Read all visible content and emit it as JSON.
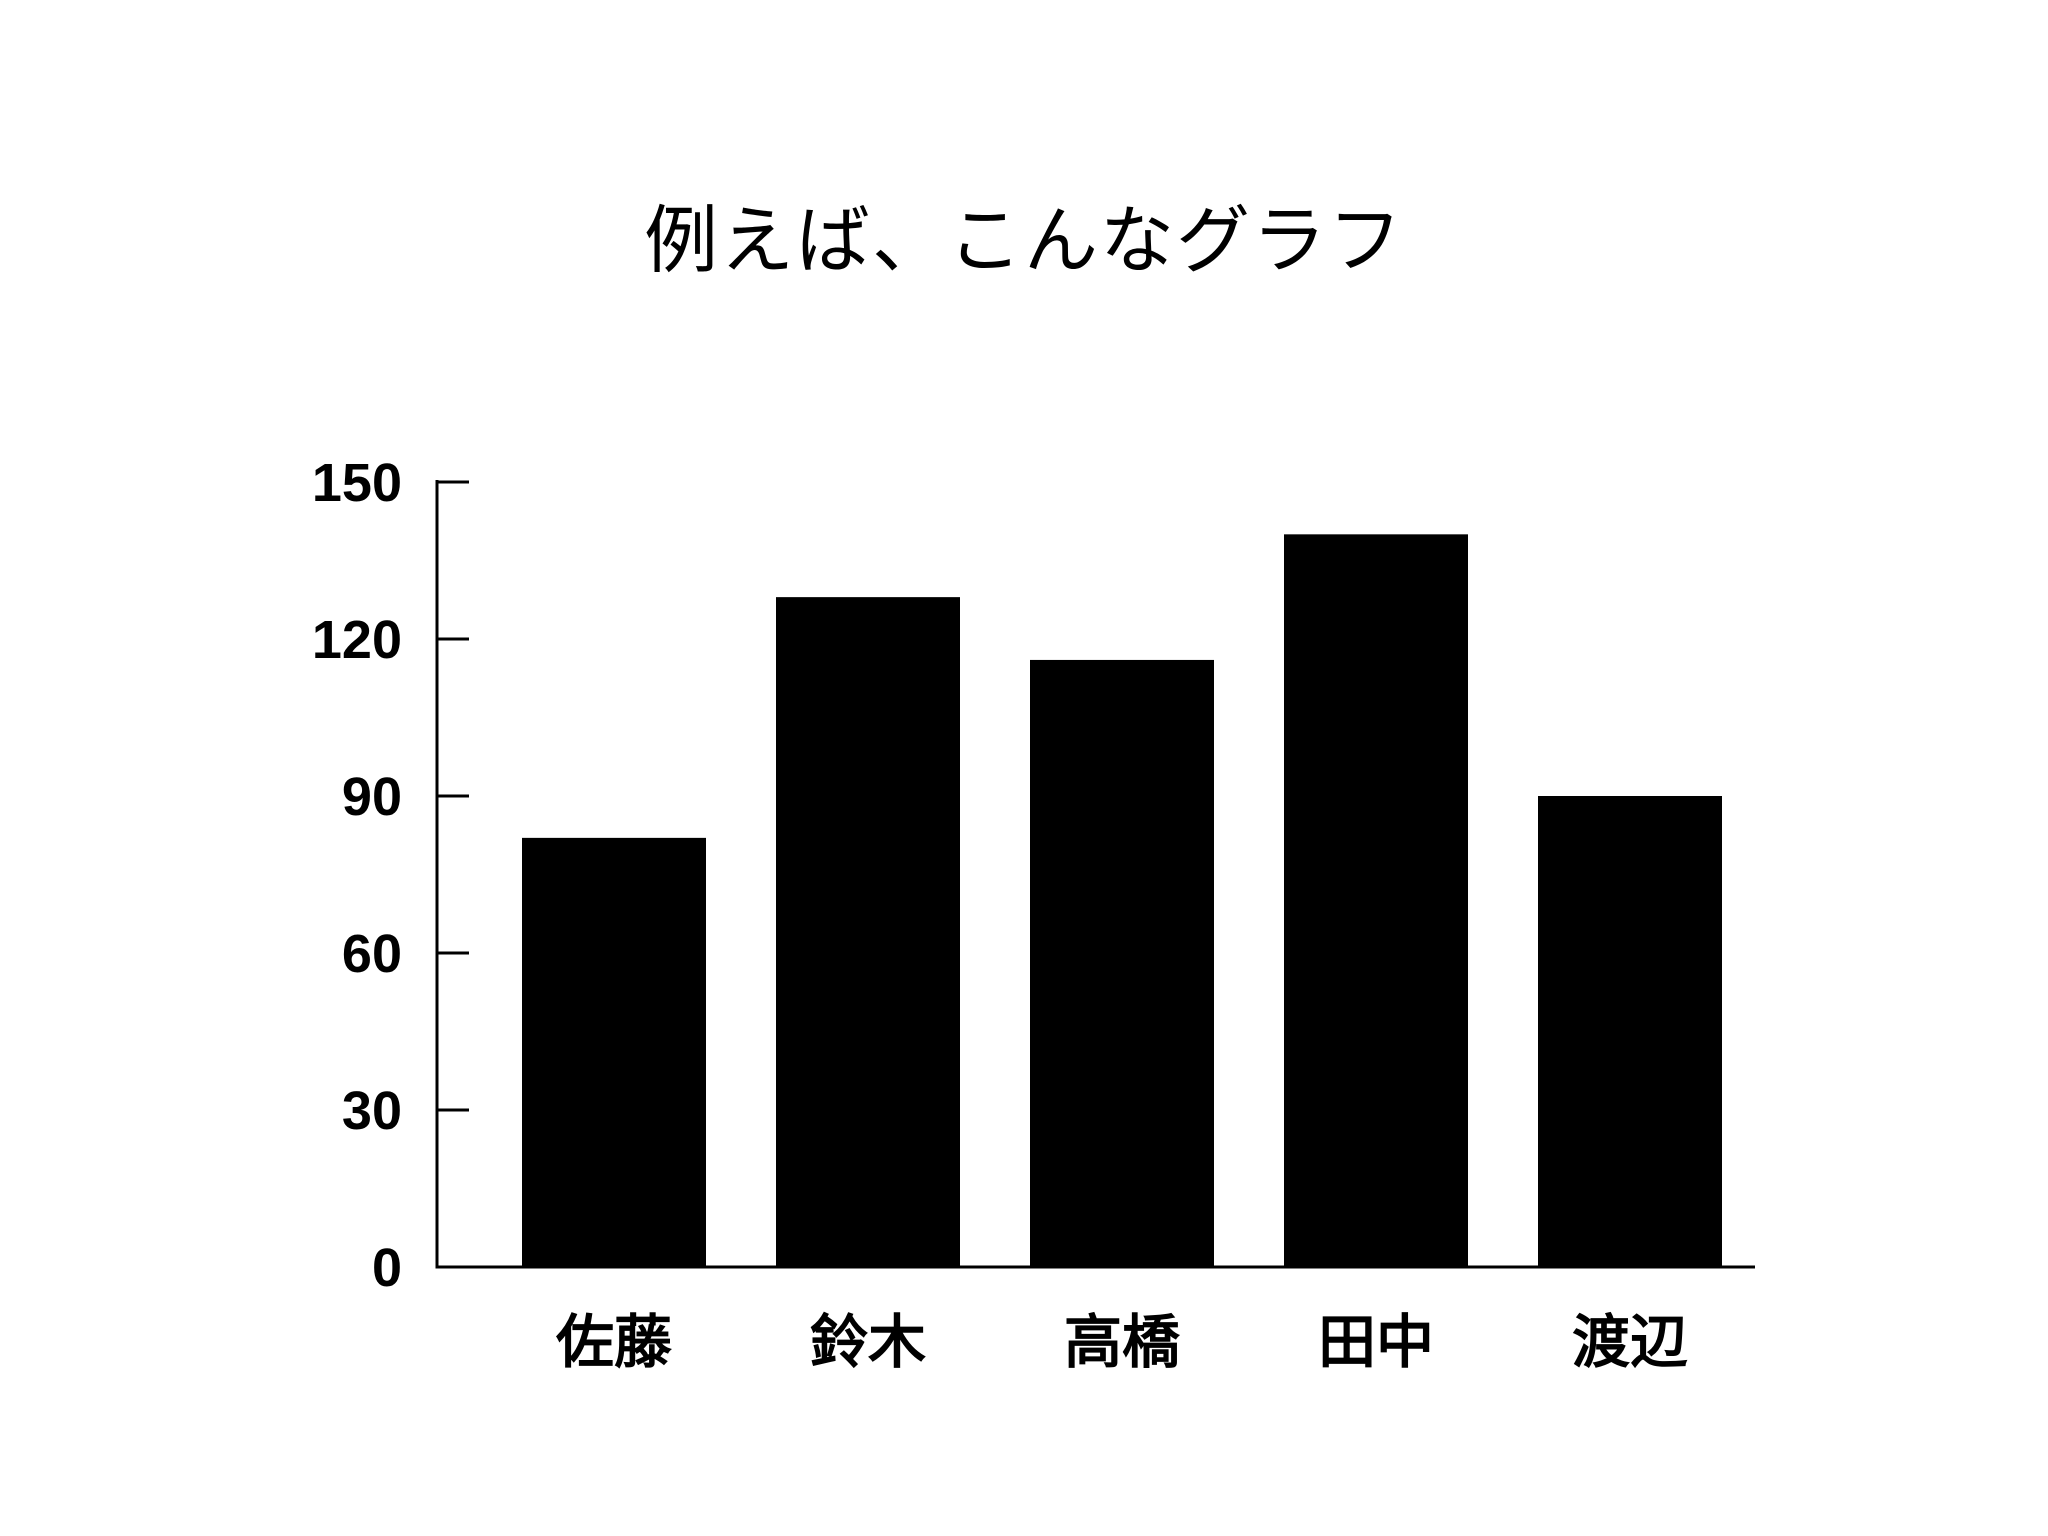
{
  "title": "例えば、こんなグラフ",
  "chart_data": {
    "type": "bar",
    "title": "例えば、こんなグラフ",
    "categories": [
      "佐藤",
      "鈴木",
      "高橋",
      "田中",
      "渡辺"
    ],
    "values": [
      82,
      128,
      116,
      140,
      90
    ],
    "xlabel": "",
    "ylabel": "",
    "ylim": [
      0,
      150
    ],
    "yticks": [
      0,
      30,
      60,
      90,
      120,
      150
    ],
    "grid": false,
    "legend": "none",
    "bar_color": "#000000",
    "axis_color": "#000000"
  }
}
